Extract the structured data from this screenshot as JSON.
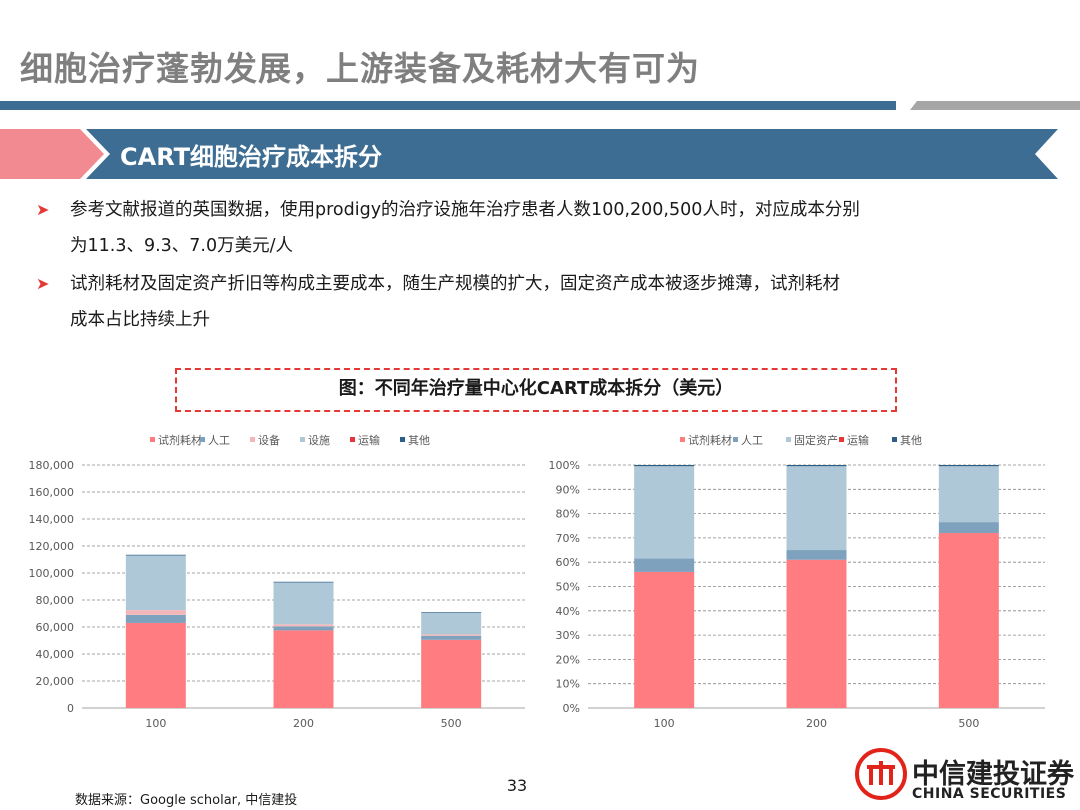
{
  "page": {
    "title": "细胞治疗蓬勃发展，上游装备及耗材大有可为",
    "section_title": "CART细胞治疗成本拆分",
    "bullets": [
      {
        "line1": "参考文献报道的英国数据，使用prodigy的治疗设施年治疗患者人数100,200,500人时，对应成本分别",
        "line2": "为11.3、9.3、7.0万美元/人"
      },
      {
        "line1": "试剂耗材及固定资产折旧等构成主要成本，随生产规模的扩大，固定资产成本被逐步摊薄，试剂耗材",
        "line2": "成本占比持续上升"
      }
    ],
    "figure_title": "图：不同年治疗量中心化CART成本拆分（美元）",
    "source": "数据来源：Google scholar, 中信建投",
    "page_number": "33",
    "logo": {
      "cn": "中信建投证券",
      "en": "CHINA SECURITIES"
    },
    "colors": {
      "title_gray": "#7f7f7f",
      "bar_blue": "#3d6d93",
      "bar_gray": "#a6a6a6",
      "banner_pink": "#f28b91",
      "bullet_red": "#e53935",
      "logo_red": "#e2231a"
    },
    "icons": {
      "bullet": "arrow-right-icon",
      "logo": "citic-seal-icon"
    }
  },
  "chart_data": [
    {
      "type": "bar",
      "stacked": true,
      "title": "",
      "xlabel": "",
      "ylabel": "",
      "categories": [
        "100",
        "200",
        "500"
      ],
      "series": [
        {
          "name": "试剂耗材",
          "color": "#ff7c80",
          "values": [
            63000,
            57500,
            50500
          ]
        },
        {
          "name": "人工",
          "color": "#7ea1be",
          "values": [
            6000,
            3000,
            3000
          ]
        },
        {
          "name": "设备",
          "color": "#f4b7b9",
          "values": [
            3500,
            1500,
            1000
          ]
        },
        {
          "name": "设施",
          "color": "#afc8d8",
          "values": [
            40500,
            31000,
            16000
          ]
        },
        {
          "name": "运输",
          "color": "#e8343b",
          "values": [
            0,
            0,
            0
          ]
        },
        {
          "name": "其他",
          "color": "#2e5e86",
          "values": [
            500,
            500,
            500
          ]
        }
      ],
      "ylim": [
        0,
        180000
      ],
      "yticks": [
        "0",
        "20,000",
        "40,000",
        "60,000",
        "80,000",
        "100,000",
        "120,000",
        "140,000",
        "160,000",
        "180,000"
      ],
      "ytick_step": 20000,
      "grid": true,
      "legend": "top"
    },
    {
      "type": "bar",
      "stacked": true,
      "percent": true,
      "title": "",
      "xlabel": "",
      "ylabel": "",
      "categories": [
        "100",
        "200",
        "500"
      ],
      "series": [
        {
          "name": "试剂耗材",
          "color": "#ff7c80",
          "values": [
            56,
            61,
            72
          ]
        },
        {
          "name": "人工",
          "color": "#7ea1be",
          "values": [
            5.5,
            4,
            4.5
          ]
        },
        {
          "name": "固定资产",
          "color": "#afc8d8",
          "values": [
            38,
            34.5,
            23
          ]
        },
        {
          "name": "运输",
          "color": "#e8343b",
          "values": [
            0,
            0,
            0
          ]
        },
        {
          "name": "其他",
          "color": "#2e5e86",
          "values": [
            0.5,
            0.5,
            0.5
          ]
        }
      ],
      "ylim": [
        0,
        100
      ],
      "yticks": [
        "0%",
        "10%",
        "20%",
        "30%",
        "40%",
        "50%",
        "60%",
        "70%",
        "80%",
        "90%",
        "100%"
      ],
      "ytick_step": 10,
      "grid": true,
      "legend": "top"
    }
  ]
}
